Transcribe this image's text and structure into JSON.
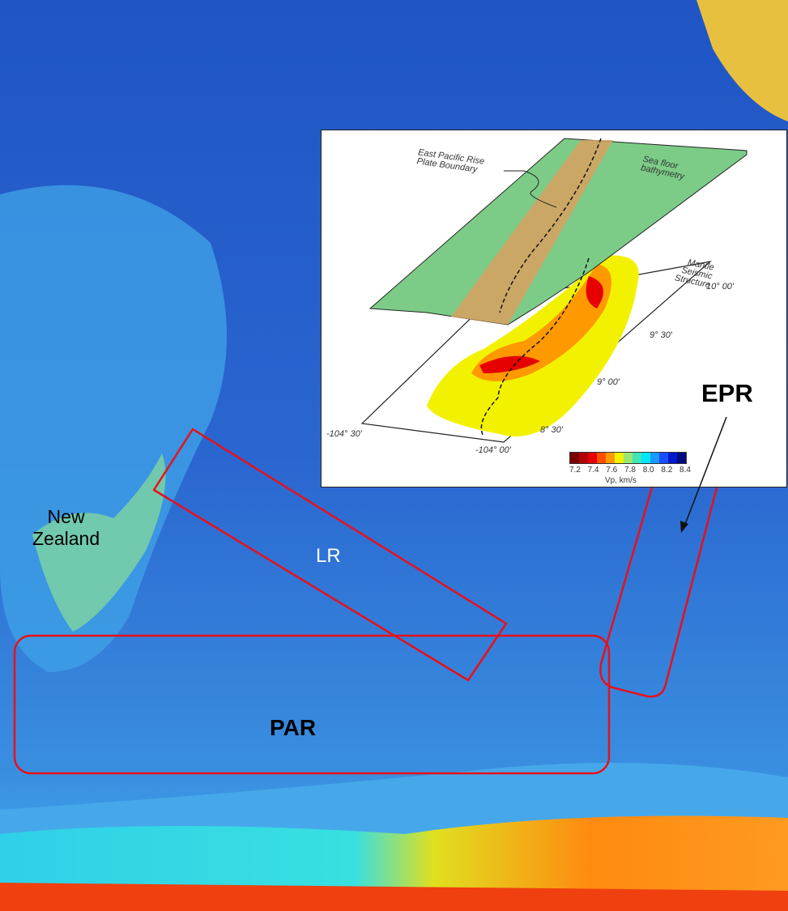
{
  "labels": {
    "new_zealand": [
      "New",
      "Zealand"
    ],
    "lr": "LR",
    "par": "PAR",
    "epr": "EPR"
  },
  "inset": {
    "plate_boundary": [
      "East Pacific Rise",
      "Plate Boundary"
    ],
    "sea_floor": [
      "Sea floor",
      "bathymetry"
    ],
    "mantle": [
      "Mantle",
      "Seismic",
      "Structure"
    ],
    "lat_ticks": [
      "10° 00'",
      "9° 30'",
      "9° 00'",
      "8° 30'"
    ],
    "lon_ticks": [
      "-104° 30'",
      "-104° 00'"
    ],
    "colorbar": {
      "ticks": [
        "7.2",
        "7.4",
        "7.6",
        "7.8",
        "8.0",
        "8.2",
        "8.4"
      ],
      "label": "Vp, km/s",
      "colors": [
        "#7a0000",
        "#b30000",
        "#e60000",
        "#ff4d00",
        "#ff9900",
        "#f2f200",
        "#99e673",
        "#40e6b3",
        "#00e6ff",
        "#1a99ff",
        "#1a4dff",
        "#0019cc",
        "#000a80"
      ]
    }
  },
  "colors": {
    "highlight_box": "#e8101a",
    "ocean": "#1a4fb8"
  }
}
